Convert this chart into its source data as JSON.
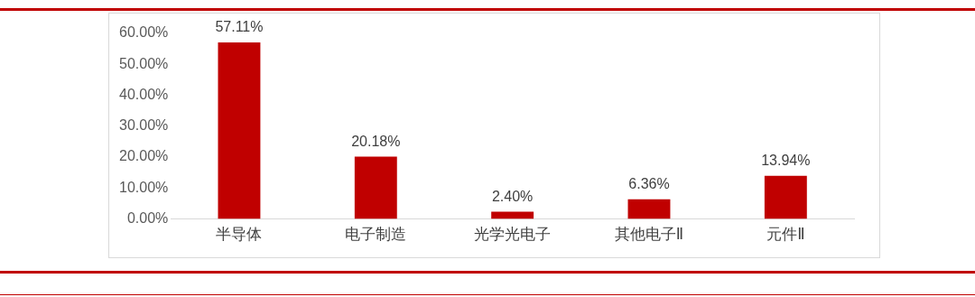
{
  "chart_data": {
    "type": "bar",
    "categories": [
      "半导体",
      "电子制造",
      "光学光电子",
      "其他电子Ⅱ",
      "元件Ⅱ"
    ],
    "values": [
      57.11,
      20.18,
      2.4,
      6.36,
      13.94
    ],
    "color": "#c00000",
    "value_labels": [
      "57.11%",
      "20.18%",
      "2.40%",
      "6.36%",
      "13.94%"
    ],
    "ylim": [
      0,
      60
    ],
    "yticks": [
      {
        "value": 0,
        "label": "0.00%"
      },
      {
        "value": 10,
        "label": "10.00%"
      },
      {
        "value": 20,
        "label": "20.00%"
      },
      {
        "value": 30,
        "label": "30.00%"
      },
      {
        "value": 40,
        "label": "40.00%"
      },
      {
        "value": 50,
        "label": "50.00%"
      },
      {
        "value": 60,
        "label": "60.00%"
      }
    ],
    "grid": false,
    "legend": false
  }
}
